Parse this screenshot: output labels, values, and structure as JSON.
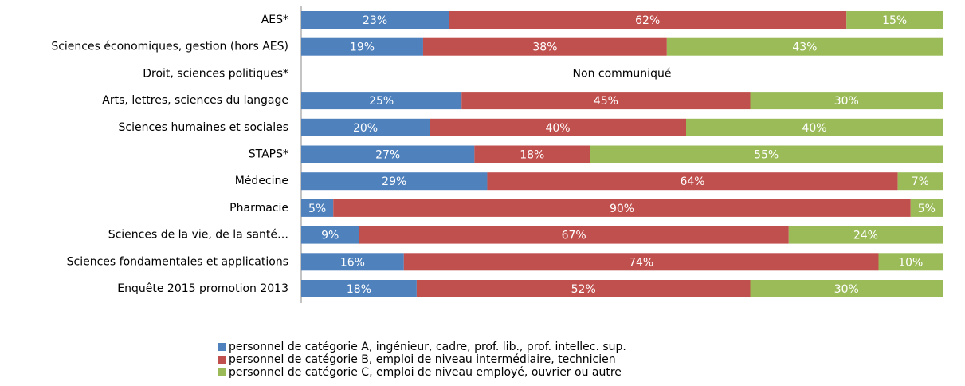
{
  "chart_data": {
    "type": "stacked_bar_h",
    "categories": [
      "AES*",
      "Sciences économiques, gestion (hors AES)",
      "Droit, sciences politiques*",
      "Arts, lettres, sciences du langage",
      "Sciences humaines et sociales",
      "STAPS*",
      "Médecine",
      "Pharmacie",
      "Sciences de la vie, de la santé…",
      "Sciences fondamentales et applications",
      "Enquête 2015 promotion 2013"
    ],
    "xlim": [
      0,
      100
    ],
    "annotation": "Non communiqué",
    "series": [
      {
        "name": "personnel de catégorie A, ingénieur, cadre, prof. lib., prof. intellec. sup.",
        "color": "#4f81bd",
        "values": [
          23,
          19,
          null,
          25,
          20,
          27,
          29,
          5,
          9,
          16,
          18
        ],
        "value_labels": [
          "23%",
          "19%",
          null,
          "25%",
          "20%",
          "27%",
          "29%",
          "5%",
          "9%",
          "16%",
          "18%"
        ]
      },
      {
        "name": "personnel de catégorie B, emploi de niveau intermédiaire, technicien",
        "color": "#c0504d",
        "values": [
          62,
          38,
          null,
          45,
          40,
          18,
          64,
          90,
          67,
          74,
          52
        ],
        "value_labels": [
          "62%",
          "38%",
          null,
          "45%",
          "40%",
          "18%",
          "64%",
          "90%",
          "67%",
          "74%",
          "52%"
        ]
      },
      {
        "name": "personnel de catégorie C, emploi de niveau employé, ouvrier ou autre",
        "color": "#9bbb59",
        "values": [
          15,
          43,
          null,
          30,
          40,
          55,
          7,
          5,
          24,
          10,
          30
        ],
        "value_labels": [
          "15%",
          "43%",
          null,
          "30%",
          "40%",
          "55%",
          "7%",
          "5%",
          "24%",
          "10%",
          "30%"
        ]
      }
    ],
    "legend": "bottom"
  }
}
